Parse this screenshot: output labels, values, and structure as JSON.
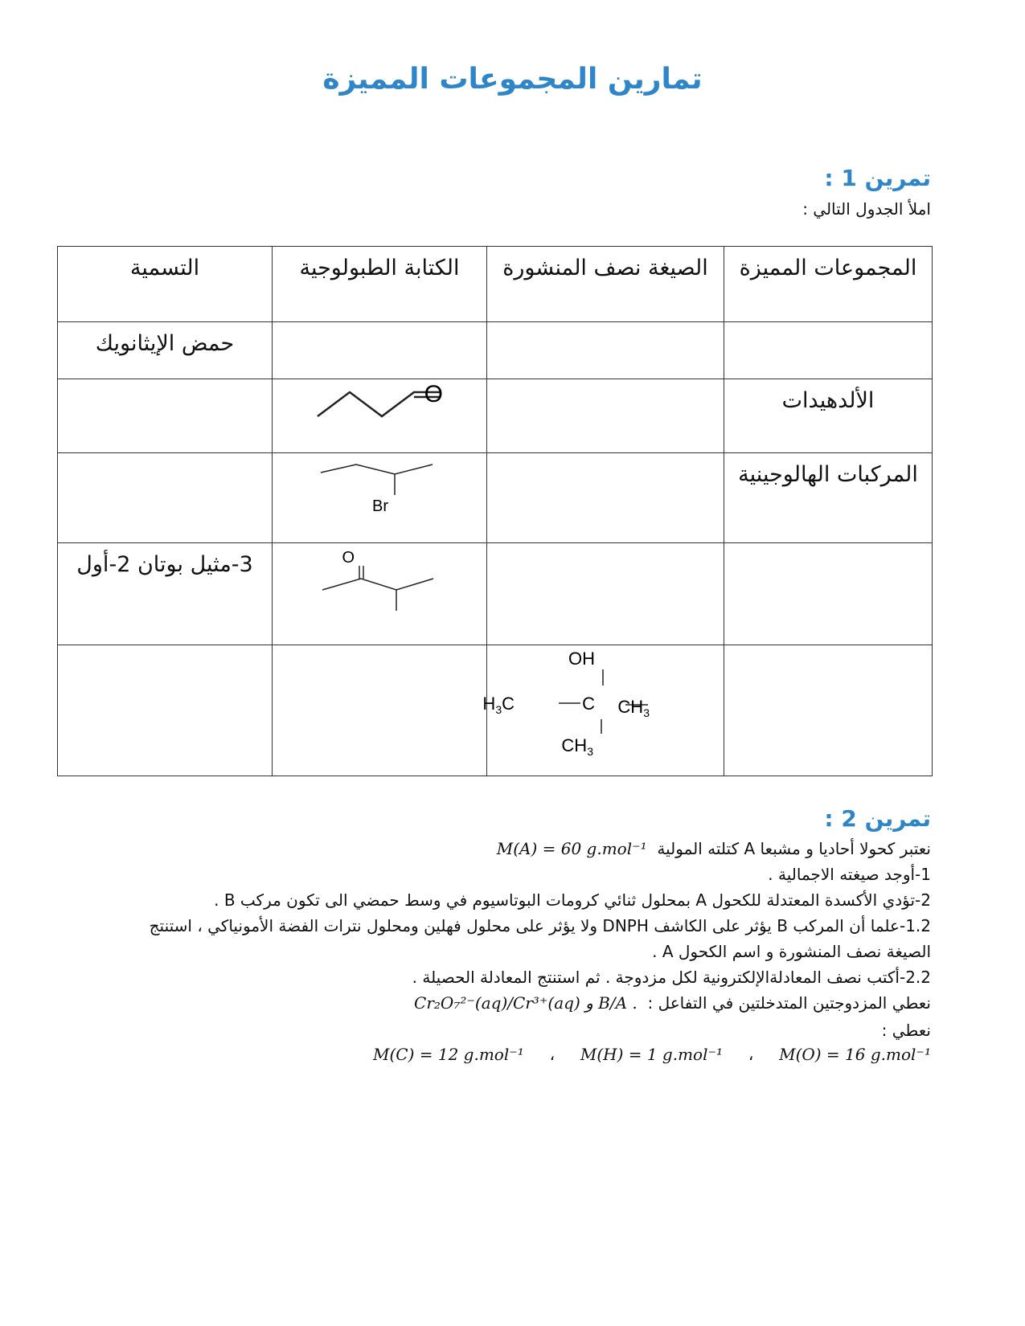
{
  "title": "تمارين المجموعات المميزة",
  "ex1": {
    "heading": "تمرين 1 :",
    "instruction": "املأ الجدول التالي :",
    "headers": [
      "المجموعات المميزة",
      "الصيغة نصف المنشورة",
      "الكتابة الطبولوجية",
      "التسمية"
    ],
    "rows": [
      {
        "group": "",
        "formula": "",
        "topology": "",
        "name": "حمض الإيثانويك"
      },
      {
        "group": "الألدهيدات",
        "formula": "",
        "topology": "butanal-skeletal",
        "name": ""
      },
      {
        "group": "المركبات الهالوجينية",
        "formula": "",
        "topology": "2-bromobutane-skeletal",
        "name": ""
      },
      {
        "group": "",
        "formula": "",
        "topology": "3-methylbutan-2-one-skeletal",
        "name": "3-مثيل بوتان 2-أول"
      },
      {
        "group": "",
        "formula": "2-methylpropan-2-ol",
        "topology": "",
        "name": ""
      }
    ],
    "atoms": {
      "o": "O",
      "br": "Br",
      "oh": "OH",
      "c": "C",
      "h3c": "H3C",
      "ch3": "CH3"
    }
  },
  "ex2": {
    "heading": "تمرين 2 :",
    "l1": "نعتبر كحولا أحاديا و مشبعا A كتلته المولية",
    "l1m": "M(A) = 60 g.mol⁻¹",
    "l2": "1-أوجد صيغته الاجمالية .",
    "l3": "2-تؤدي الأكسدة المعتدلة للكحول A بمحلول ثنائي كرومات البوتاسيوم في وسط حمضي الى تكون مركب B .",
    "l4": "1.2-علما أن المركب B يؤثر على الكاشف DNPH ولا يؤثر على محلول فهلين ومحلول نترات الفضة الأمونياكي ، استنتج",
    "l5": "الصيغة نصف المنشورة و اسم الكحول A .",
    "l6": "2.2-أكتب نصف المعادلةالإلكترونية لكل مزدوجة . ثم استنتج المعادلة الحصيلة .",
    "l7": "نعطي المزدوجتين المتدخلتين في التفاعل :",
    "l7m": "Cr₂O₇²⁻(aq)/Cr³⁺(aq) و B/A .",
    "l8": "نعطي :",
    "masses": [
      "M(C) = 12 g.mol⁻¹",
      "M(H) = 1 g.mol⁻¹",
      "M(O) = 16 g.mol⁻¹"
    ]
  }
}
